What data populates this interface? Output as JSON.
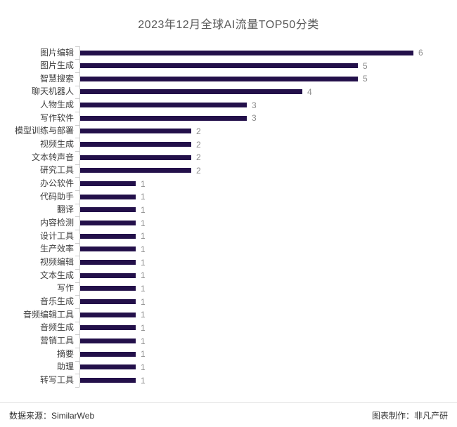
{
  "title": "2023年12月全球AI流量TOP50分类",
  "footer": {
    "source_label": "数据来源：SimilarWeb",
    "maker_label": "图表制作：非凡产研"
  },
  "chart_data": {
    "type": "bar",
    "orientation": "horizontal",
    "title": "2023年12月全球AI流量TOP50分类",
    "xlabel": "",
    "ylabel": "",
    "categories": [
      "图片编辑",
      "图片生成",
      "智慧搜索",
      "聊天机器人",
      "人物生成",
      "写作软件",
      "模型训练与部署",
      "视频生成",
      "文本转声音",
      "研究工具",
      "办公软件",
      "代码助手",
      "翻译",
      "内容检测",
      "设计工具",
      "生产效率",
      "视频编辑",
      "文本生成",
      "写作",
      "音乐生成",
      "音频编辑工具",
      "音频生成",
      "营销工具",
      "摘要",
      "助理",
      "转写工具"
    ],
    "values": [
      6,
      5,
      5,
      4,
      3,
      3,
      2,
      2,
      2,
      2,
      1,
      1,
      1,
      1,
      1,
      1,
      1,
      1,
      1,
      1,
      1,
      1,
      1,
      1,
      1,
      1
    ],
    "xlim": [
      0,
      6.5
    ],
    "grid": false,
    "legend": false,
    "value_labels": true,
    "colors": {
      "bar": "#23104a",
      "axis": "#cccccc",
      "category_label": "#3d3d3d",
      "value_label": "#8c8c8c",
      "title": "#595959",
      "footer_text": "#333333",
      "separator": "#e3e3e3"
    }
  }
}
